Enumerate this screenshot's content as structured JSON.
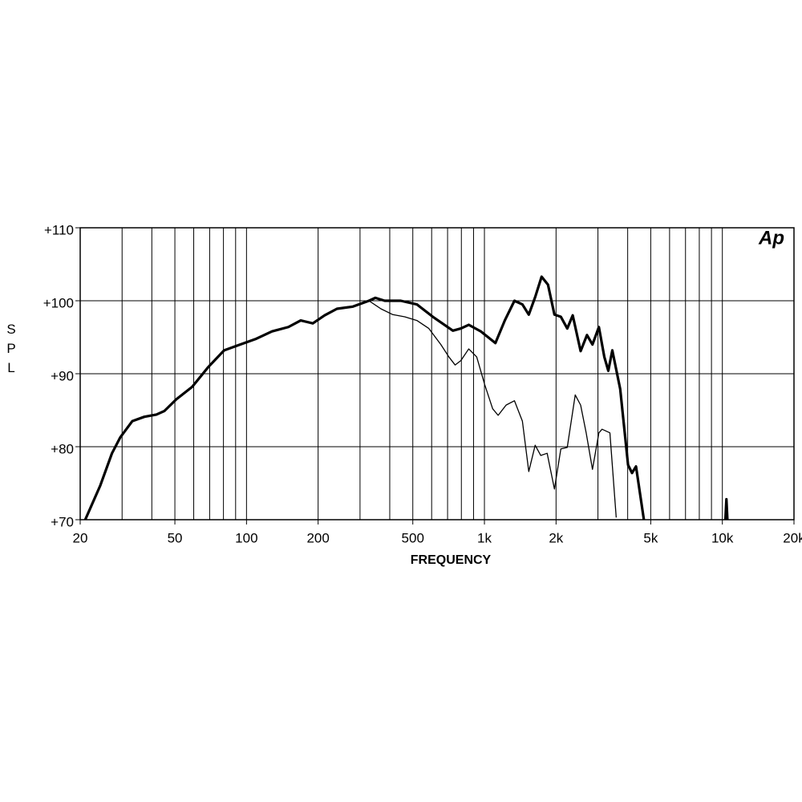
{
  "chart_data": {
    "type": "line",
    "logo": "Ap",
    "ylabel": "SPL",
    "xlabel": "FREQUENCY",
    "xscale": "log",
    "grid": true,
    "xlim": [
      20,
      20000
    ],
    "ylim": [
      70,
      110
    ],
    "xticks": [
      20,
      50,
      100,
      200,
      500,
      {
        "value": 1000,
        "label": "1k"
      },
      {
        "value": 2000,
        "label": "2k"
      },
      {
        "value": 5000,
        "label": "5k"
      },
      {
        "value": 10000,
        "label": "10k"
      },
      {
        "value": 20000,
        "label": "20k"
      }
    ],
    "xgrid": [
      30,
      40,
      50,
      60,
      70,
      80,
      90,
      100,
      200,
      300,
      400,
      500,
      600,
      700,
      800,
      900,
      1000,
      2000,
      3000,
      4000,
      5000,
      6000,
      7000,
      8000,
      9000,
      10000
    ],
    "yticks": [
      {
        "value": 70,
        "label": "+70"
      },
      {
        "value": 80,
        "label": "+80"
      },
      {
        "value": 90,
        "label": "+90"
      },
      {
        "value": 100,
        "label": "+100"
      },
      {
        "value": 110,
        "label": "+110"
      }
    ],
    "series": [
      {
        "color": "#000000",
        "style": "thick",
        "x": [
          21,
          24.3,
          27.2,
          29.5,
          33.1,
          37.2,
          41.8,
          45.2,
          50.7,
          59.1,
          69,
          80.5,
          94,
          110,
          128,
          150,
          169,
          190,
          213,
          240,
          280,
          327,
          348,
          381,
          445,
          520,
          607,
          737,
          796,
          859,
          966,
          1112,
          1218,
          1337,
          1444,
          1536,
          1634,
          1739,
          1850,
          1969,
          2095,
          2229,
          2350,
          2537,
          2698,
          2845,
          3027,
          3191,
          3316,
          3447,
          3721,
          4015,
          4172,
          4336,
          4679,
          7000,
          10300,
          10400,
          10500
        ],
        "values": [
          70,
          74.7,
          79.1,
          81.3,
          83.5,
          84.1,
          84.4,
          84.9,
          86.5,
          88.2,
          90.9,
          93.2,
          94,
          94.8,
          95.8,
          96.4,
          97.3,
          96.9,
          98,
          98.9,
          99.2,
          100,
          100.4,
          100,
          100,
          99.5,
          97.8,
          95.9,
          96.2,
          96.7,
          95.8,
          94.2,
          97.3,
          100,
          99.5,
          98.1,
          100.5,
          103.3,
          102.2,
          98.1,
          97.8,
          96.2,
          98,
          93.1,
          95.3,
          94,
          96.4,
          92.3,
          90.4,
          93.2,
          87.9,
          77.5,
          76.4,
          77.3,
          70,
          null,
          70,
          72.8,
          70
        ]
      },
      {
        "color": "#000000",
        "style": "thin",
        "x": [
          327,
          367,
          412,
          462,
          520,
          584,
          656,
          709,
          753,
          796,
          859,
          928,
          1003,
          1083,
          1142,
          1233,
          1337,
          1444,
          1536,
          1634,
          1725,
          1835,
          1969,
          2095,
          2229,
          2408,
          2537,
          2677,
          2845,
          3027,
          3122,
          3368,
          3580
        ],
        "values": [
          100,
          98.9,
          98.1,
          97.8,
          97.3,
          96.2,
          94,
          92.3,
          91.2,
          91.8,
          93.4,
          92.3,
          88.5,
          85.2,
          84.3,
          85.7,
          86.3,
          83.5,
          76.6,
          80.2,
          78.8,
          79.1,
          74.2,
          79.7,
          79.9,
          87.1,
          85.7,
          81.9,
          76.9,
          81.9,
          82.4,
          81.9,
          70.3
        ]
      }
    ]
  }
}
